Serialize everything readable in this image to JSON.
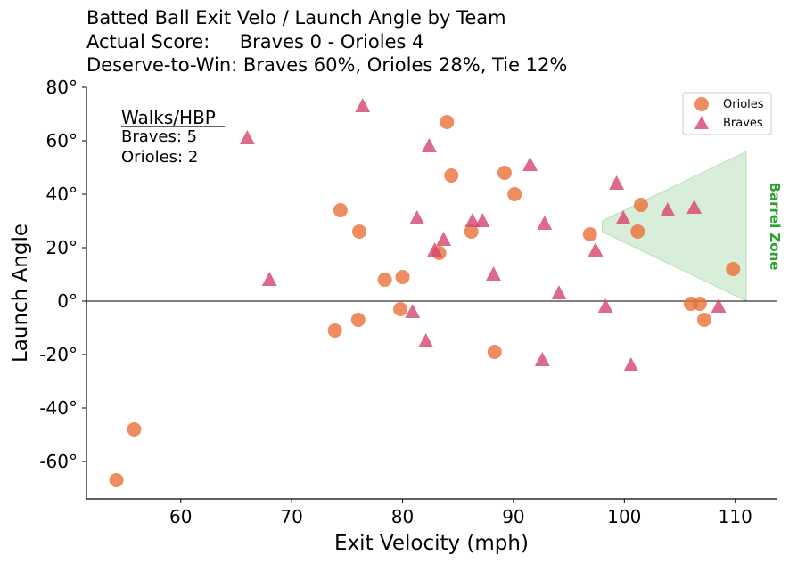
{
  "chart_data": {
    "type": "scatter",
    "title_lines": [
      "Batted Ball Exit Velo / Launch Angle by Team",
      "Actual Score:     Braves 0 - Orioles 4",
      "Deserve-to-Win: Braves 60%, Orioles 28%, Tie 12%"
    ],
    "xlabel": "Exit Velocity (mph)",
    "ylabel": "Launch Angle",
    "xlim": [
      51.5,
      113.8
    ],
    "ylim": [
      -74,
      80
    ],
    "xticks": [
      60,
      70,
      80,
      90,
      100,
      110
    ],
    "yticks": [
      -60,
      -40,
      -20,
      0,
      20,
      40,
      60,
      80
    ],
    "ytick_labels": [
      "-60°",
      "-40°",
      "-20°",
      "0°",
      "20°",
      "40°",
      "60°",
      "80°"
    ],
    "grid": false,
    "legend_position": "top-right",
    "series": [
      {
        "name": "Orioles",
        "marker": "circle",
        "color": "#e8703a",
        "points": [
          [
            54.2,
            -67
          ],
          [
            55.8,
            -48
          ],
          [
            73.9,
            -11
          ],
          [
            74.4,
            34
          ],
          [
            76,
            -7
          ],
          [
            76.1,
            26
          ],
          [
            78.4,
            8
          ],
          [
            79.8,
            -3
          ],
          [
            80,
            9
          ],
          [
            83.3,
            18
          ],
          [
            84,
            67
          ],
          [
            84.4,
            47
          ],
          [
            86.2,
            26
          ],
          [
            88.3,
            -19
          ],
          [
            89.2,
            48
          ],
          [
            90.1,
            40
          ],
          [
            96.9,
            25
          ],
          [
            101.2,
            26
          ],
          [
            101.5,
            36
          ],
          [
            106,
            -1
          ],
          [
            106.8,
            -1
          ],
          [
            107.2,
            -7
          ],
          [
            109.8,
            12
          ]
        ]
      },
      {
        "name": "Braves",
        "marker": "triangle",
        "color": "#d6456e",
        "points": [
          [
            66,
            61
          ],
          [
            68,
            8
          ],
          [
            76.4,
            73
          ],
          [
            80.9,
            -4
          ],
          [
            81.3,
            31
          ],
          [
            82.1,
            -15
          ],
          [
            82.4,
            58
          ],
          [
            82.9,
            19
          ],
          [
            83.7,
            23
          ],
          [
            86.3,
            30
          ],
          [
            87.2,
            30
          ],
          [
            88.2,
            10
          ],
          [
            91.5,
            51
          ],
          [
            92.6,
            -22
          ],
          [
            92.8,
            29
          ],
          [
            94.1,
            3
          ],
          [
            97.4,
            19
          ],
          [
            98.3,
            -2
          ],
          [
            99.3,
            44
          ],
          [
            99.9,
            31
          ],
          [
            100.6,
            -24
          ],
          [
            103.9,
            34
          ],
          [
            106.3,
            35
          ],
          [
            108.5,
            -2
          ]
        ]
      }
    ],
    "barrel_zone": {
      "label": "Barrel Zone",
      "color": "#2ca02c",
      "polygon": [
        [
          98,
          26
        ],
        [
          98,
          30
        ],
        [
          111,
          56
        ],
        [
          111,
          0
        ]
      ]
    },
    "reference_line_y": 0
  },
  "annotation": {
    "heading": "Walks/HBP",
    "lines": [
      "Braves: 5",
      "Orioles: 2"
    ]
  }
}
